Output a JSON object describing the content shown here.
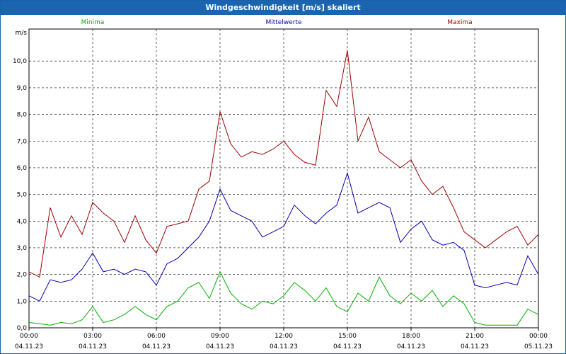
{
  "window": {
    "title": "Windgeschwindigkeit [m/s] skaliert"
  },
  "chart_data": {
    "type": "line",
    "title": "Windgeschwindigkeit [m/s] skaliert",
    "ylabel": "m/s",
    "xlabel": "",
    "ylim": [
      0,
      11.2
    ],
    "xlim": [
      0,
      24
    ],
    "yticks": [
      0.0,
      1.0,
      2.0,
      3.0,
      4.0,
      5.0,
      6.0,
      7.0,
      8.0,
      9.0,
      10.0
    ],
    "ytick_labels": [
      "0,0",
      "1,0",
      "2,0",
      "3,0",
      "4,0",
      "5,0",
      "6,0",
      "7,0",
      "8,0",
      "9,0",
      "10,0"
    ],
    "xticks": [
      0,
      3,
      6,
      9,
      12,
      15,
      18,
      21,
      24
    ],
    "xtick_labels": [
      {
        "time": "00:00",
        "date": "04.11.23"
      },
      {
        "time": "03:00",
        "date": "04.11.23"
      },
      {
        "time": "06:00",
        "date": "04.11.23"
      },
      {
        "time": "09:00",
        "date": "04.11.23"
      },
      {
        "time": "12:00",
        "date": "04.11.23"
      },
      {
        "time": "15:00",
        "date": "04.11.23"
      },
      {
        "time": "18:00",
        "date": "04.11.23"
      },
      {
        "time": "21:00",
        "date": "04.11.23"
      },
      {
        "time": "00:00",
        "date": "05.11.23"
      }
    ],
    "grid": true,
    "legend_position": "top",
    "series": [
      {
        "name": "Minima",
        "color": "#00b000",
        "x": [
          0,
          0.5,
          1,
          1.5,
          2,
          2.5,
          3,
          3.5,
          4,
          4.5,
          5,
          5.5,
          6,
          6.5,
          7,
          7.5,
          8,
          8.5,
          9,
          9.5,
          10,
          10.5,
          11,
          11.5,
          12,
          12.5,
          13,
          13.5,
          14,
          14.5,
          15,
          15.5,
          16,
          16.5,
          17,
          17.5,
          18,
          18.5,
          19,
          19.5,
          20,
          20.5,
          21,
          21.5,
          22,
          22.5,
          23,
          23.5,
          24
        ],
        "y": [
          0.2,
          0.15,
          0.1,
          0.2,
          0.15,
          0.3,
          0.8,
          0.2,
          0.3,
          0.5,
          0.8,
          0.5,
          0.3,
          0.8,
          1.0,
          1.5,
          1.7,
          1.1,
          2.1,
          1.3,
          0.9,
          0.7,
          1.0,
          0.9,
          1.2,
          1.7,
          1.4,
          1.0,
          1.5,
          0.8,
          0.6,
          1.3,
          1.0,
          1.9,
          1.2,
          0.9,
          1.3,
          1.0,
          1.4,
          0.8,
          1.2,
          0.9,
          0.2,
          0.1,
          0.1,
          0.1,
          0.1,
          0.7,
          0.5
        ]
      },
      {
        "name": "Mittelwerte",
        "color": "#0000b0",
        "x": [
          0,
          0.5,
          1,
          1.5,
          2,
          2.5,
          3,
          3.5,
          4,
          4.5,
          5,
          5.5,
          6,
          6.5,
          7,
          7.5,
          8,
          8.5,
          9,
          9.5,
          10,
          10.5,
          11,
          11.5,
          12,
          12.5,
          13,
          13.5,
          14,
          14.5,
          15,
          15.5,
          16,
          16.5,
          17,
          17.5,
          18,
          18.5,
          19,
          19.5,
          20,
          20.5,
          21,
          21.5,
          22,
          22.5,
          23,
          23.5,
          24
        ],
        "y": [
          1.2,
          1.0,
          1.8,
          1.7,
          1.8,
          2.2,
          2.8,
          2.1,
          2.2,
          2.0,
          2.2,
          2.1,
          1.6,
          2.4,
          2.6,
          3.0,
          3.4,
          4.0,
          5.2,
          4.4,
          4.2,
          4.0,
          3.4,
          3.6,
          3.8,
          4.6,
          4.2,
          3.9,
          4.3,
          4.6,
          5.8,
          4.3,
          4.5,
          4.7,
          4.5,
          3.2,
          3.7,
          4.0,
          3.3,
          3.1,
          3.2,
          2.9,
          1.6,
          1.5,
          1.6,
          1.7,
          1.6,
          2.7,
          2.0
        ]
      },
      {
        "name": "Maxima",
        "color": "#a00000",
        "x": [
          0,
          0.5,
          1,
          1.5,
          2,
          2.5,
          3,
          3.5,
          4,
          4.5,
          5,
          5.5,
          6,
          6.5,
          7,
          7.5,
          8,
          8.5,
          9,
          9.5,
          10,
          10.5,
          11,
          11.5,
          12,
          12.5,
          13,
          13.5,
          14,
          14.5,
          15,
          15.5,
          16,
          16.5,
          17,
          17.5,
          18,
          18.5,
          19,
          19.5,
          20,
          20.5,
          21,
          21.5,
          22,
          22.5,
          23,
          23.5,
          24
        ],
        "y": [
          2.1,
          1.9,
          4.5,
          3.4,
          4.2,
          3.5,
          4.7,
          4.3,
          4.0,
          3.2,
          4.2,
          3.3,
          2.8,
          3.8,
          3.9,
          4.0,
          5.2,
          5.5,
          8.1,
          6.9,
          6.4,
          6.6,
          6.5,
          6.7,
          7.0,
          6.5,
          6.2,
          6.1,
          8.9,
          8.3,
          10.4,
          7.0,
          7.9,
          6.6,
          6.3,
          6.0,
          6.3,
          5.5,
          5.0,
          5.3,
          4.5,
          3.6,
          3.3,
          3.0,
          3.3,
          3.6,
          3.8,
          3.1,
          3.5
        ]
      }
    ]
  }
}
